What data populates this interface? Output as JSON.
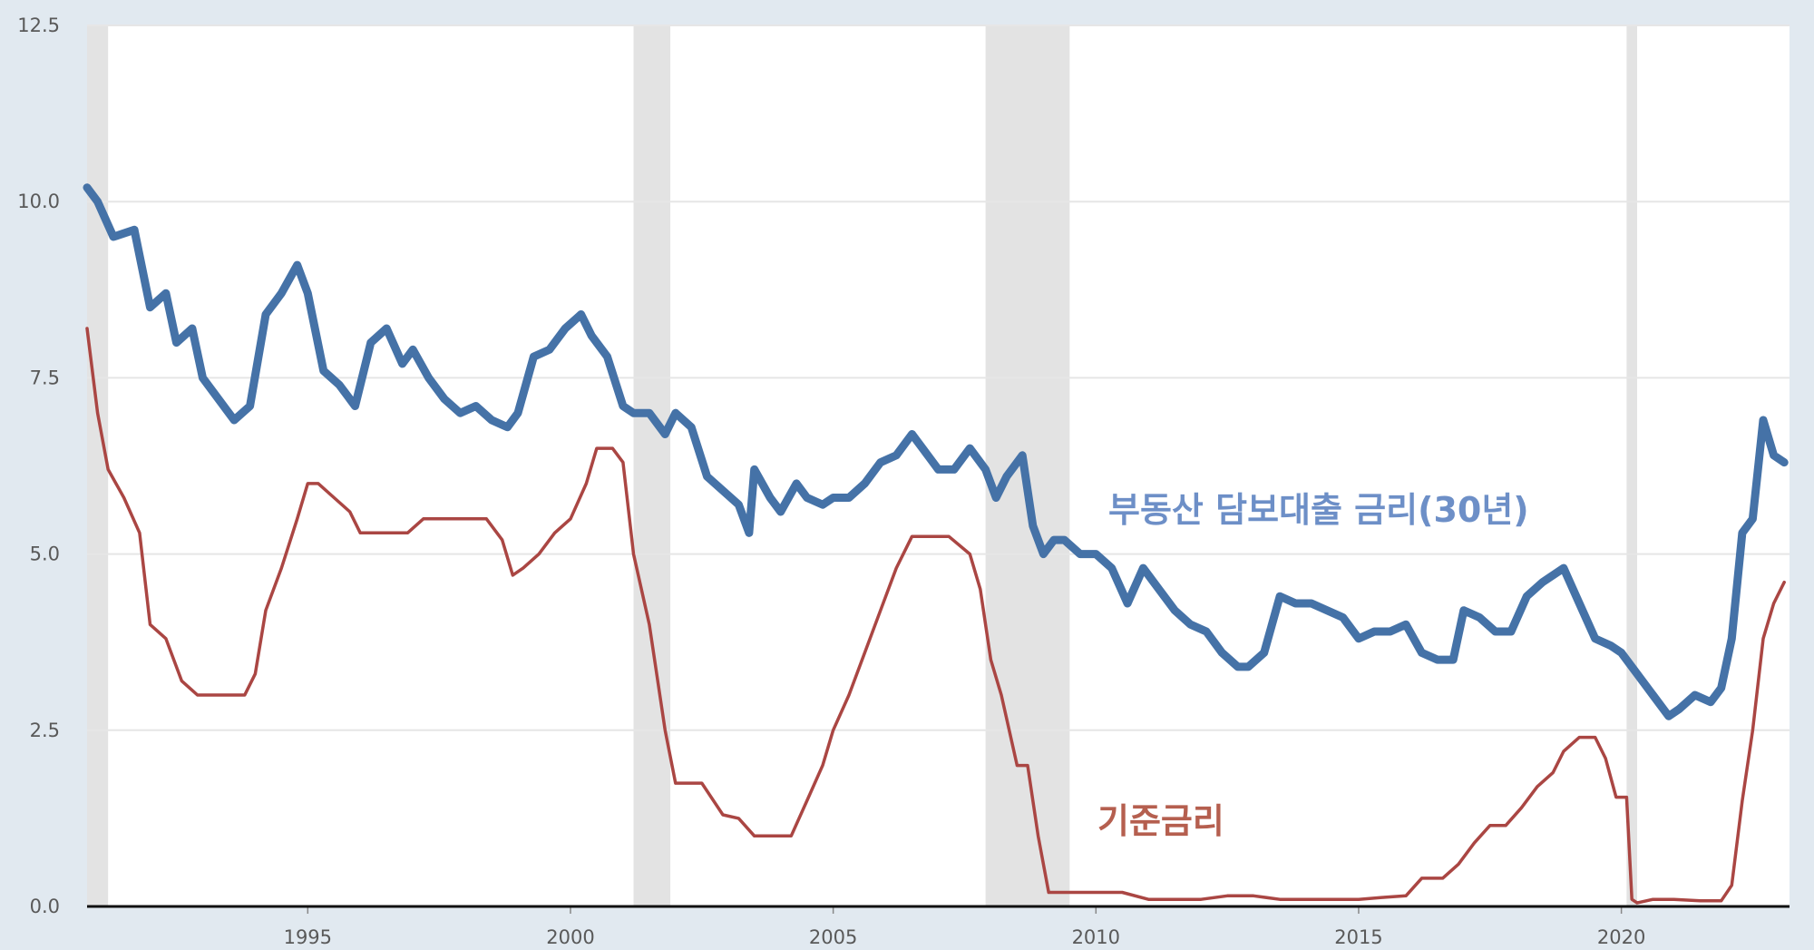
{
  "chart_data": {
    "type": "line",
    "title": "",
    "xlabel": "",
    "ylabel": "",
    "xlim": [
      1990.8,
      2023.2
    ],
    "ylim": [
      0,
      12.5
    ],
    "grid": true,
    "y_ticks": [
      "0.0",
      "2.5",
      "5.0",
      "7.5",
      "10.0",
      "12.5"
    ],
    "x_ticks": [
      "1995",
      "2000",
      "2005",
      "2010",
      "2015",
      "2020"
    ],
    "recessions": [
      [
        1990.8,
        1991.2
      ],
      [
        2001.2,
        2001.9
      ],
      [
        2007.9,
        2009.5
      ],
      [
        2020.1,
        2020.3
      ]
    ],
    "colors": {
      "background": "#e1e9f0",
      "plot": "#ffffff",
      "grid": "#e6e6e6",
      "recession": "#e3e3e3",
      "mortgage": "#4572a7",
      "fed": "#aa4643",
      "mortgage_label": "#6d8fc7",
      "fed_label": "#b55f4f"
    },
    "series": [
      {
        "key": "mortgage",
        "label": "부동산 담보대출 금리(30년)",
        "x": [
          1990.8,
          1991.0,
          1991.3,
          1991.7,
          1992.0,
          1992.3,
          1992.5,
          1992.8,
          1993.0,
          1993.3,
          1993.6,
          1993.9,
          1994.2,
          1994.5,
          1994.8,
          1995.0,
          1995.3,
          1995.6,
          1995.9,
          1996.2,
          1996.5,
          1996.8,
          1997.0,
          1997.3,
          1997.6,
          1997.9,
          1998.2,
          1998.5,
          1998.8,
          1999.0,
          1999.3,
          1999.6,
          1999.9,
          2000.2,
          2000.4,
          2000.7,
          2001.0,
          2001.2,
          2001.5,
          2001.8,
          2002.0,
          2002.3,
          2002.6,
          2002.9,
          2003.2,
          2003.4,
          2003.5,
          2003.8,
          2004.0,
          2004.3,
          2004.5,
          2004.8,
          2005.0,
          2005.3,
          2005.6,
          2005.9,
          2006.2,
          2006.5,
          2006.8,
          2007.0,
          2007.3,
          2007.6,
          2007.9,
          2008.1,
          2008.3,
          2008.6,
          2008.8,
          2009.0,
          2009.2,
          2009.4,
          2009.7,
          2010.0,
          2010.3,
          2010.6,
          2010.9,
          2011.2,
          2011.5,
          2011.8,
          2012.1,
          2012.4,
          2012.7,
          2012.9,
          2013.2,
          2013.5,
          2013.8,
          2014.1,
          2014.4,
          2014.7,
          2015.0,
          2015.3,
          2015.6,
          2015.9,
          2016.2,
          2016.5,
          2016.8,
          2017.0,
          2017.3,
          2017.6,
          2017.9,
          2018.2,
          2018.5,
          2018.9,
          2019.2,
          2019.5,
          2019.8,
          2020.0,
          2020.3,
          2020.6,
          2020.9,
          2021.1,
          2021.4,
          2021.7,
          2021.9,
          2022.1,
          2022.3,
          2022.5,
          2022.7,
          2022.9,
          2023.1
        ],
        "y": [
          10.2,
          10.0,
          9.5,
          9.6,
          8.5,
          8.7,
          8.0,
          8.2,
          7.5,
          7.2,
          6.9,
          7.1,
          8.4,
          8.7,
          9.1,
          8.7,
          7.6,
          7.4,
          7.1,
          8.0,
          8.2,
          7.7,
          7.9,
          7.5,
          7.2,
          7.0,
          7.1,
          6.9,
          6.8,
          7.0,
          7.8,
          7.9,
          8.2,
          8.4,
          8.1,
          7.8,
          7.1,
          7.0,
          7.0,
          6.7,
          7.0,
          6.8,
          6.1,
          5.9,
          5.7,
          5.3,
          6.2,
          5.8,
          5.6,
          6.0,
          5.8,
          5.7,
          5.8,
          5.8,
          6.0,
          6.3,
          6.4,
          6.7,
          6.4,
          6.2,
          6.2,
          6.5,
          6.2,
          5.8,
          6.1,
          6.4,
          5.4,
          5.0,
          5.2,
          5.2,
          5.0,
          5.0,
          4.8,
          4.3,
          4.8,
          4.5,
          4.2,
          4.0,
          3.9,
          3.6,
          3.4,
          3.4,
          3.6,
          4.4,
          4.3,
          4.3,
          4.2,
          4.1,
          3.8,
          3.9,
          3.9,
          4.0,
          3.6,
          3.5,
          3.5,
          4.2,
          4.1,
          3.9,
          3.9,
          4.4,
          4.6,
          4.8,
          4.3,
          3.8,
          3.7,
          3.6,
          3.3,
          3.0,
          2.7,
          2.8,
          3.0,
          2.9,
          3.1,
          3.8,
          5.3,
          5.5,
          6.9,
          6.4,
          6.3
        ]
      },
      {
        "key": "fed",
        "label": "기준금리",
        "x": [
          1990.8,
          1991.0,
          1991.2,
          1991.5,
          1991.8,
          1992.0,
          1992.3,
          1992.6,
          1992.9,
          1993.2,
          1993.5,
          1993.8,
          1994.0,
          1994.2,
          1994.5,
          1994.8,
          1995.0,
          1995.2,
          1995.5,
          1995.8,
          1996.0,
          1996.3,
          1996.6,
          1996.9,
          1997.2,
          1997.5,
          1997.8,
          1998.1,
          1998.4,
          1998.7,
          1998.9,
          1999.1,
          1999.4,
          1999.7,
          2000.0,
          2000.3,
          2000.5,
          2000.8,
          2001.0,
          2001.2,
          2001.5,
          2001.8,
          2002.0,
          2002.5,
          2002.9,
          2003.2,
          2003.5,
          2003.8,
          2004.2,
          2004.5,
          2004.8,
          2005.0,
          2005.3,
          2005.6,
          2005.9,
          2006.2,
          2006.5,
          2006.8,
          2007.2,
          2007.6,
          2007.8,
          2008.0,
          2008.2,
          2008.5,
          2008.7,
          2008.9,
          2009.1,
          2009.5,
          2010.0,
          2010.5,
          2011.0,
          2011.5,
          2012.0,
          2012.5,
          2013.0,
          2013.5,
          2014.0,
          2014.5,
          2015.0,
          2015.5,
          2015.9,
          2016.2,
          2016.6,
          2016.9,
          2017.2,
          2017.5,
          2017.8,
          2018.1,
          2018.4,
          2018.7,
          2018.9,
          2019.2,
          2019.5,
          2019.7,
          2019.9,
          2020.1,
          2020.2,
          2020.3,
          2020.6,
          2021.0,
          2021.5,
          2021.9,
          2022.1,
          2022.3,
          2022.5,
          2022.7,
          2022.9,
          2023.1
        ],
        "y": [
          8.2,
          7.0,
          6.2,
          5.8,
          5.3,
          4.0,
          3.8,
          3.2,
          3.0,
          3.0,
          3.0,
          3.0,
          3.3,
          4.2,
          4.8,
          5.5,
          6.0,
          6.0,
          5.8,
          5.6,
          5.3,
          5.3,
          5.3,
          5.3,
          5.5,
          5.5,
          5.5,
          5.5,
          5.5,
          5.2,
          4.7,
          4.8,
          5.0,
          5.3,
          5.5,
          6.0,
          6.5,
          6.5,
          6.3,
          5.0,
          4.0,
          2.5,
          1.75,
          1.75,
          1.3,
          1.25,
          1.0,
          1.0,
          1.0,
          1.5,
          2.0,
          2.5,
          3.0,
          3.6,
          4.2,
          4.8,
          5.25,
          5.25,
          5.25,
          5.0,
          4.5,
          3.5,
          3.0,
          2.0,
          2.0,
          1.0,
          0.2,
          0.2,
          0.2,
          0.2,
          0.1,
          0.1,
          0.1,
          0.15,
          0.15,
          0.1,
          0.1,
          0.1,
          0.1,
          0.13,
          0.15,
          0.4,
          0.4,
          0.6,
          0.9,
          1.15,
          1.15,
          1.4,
          1.7,
          1.9,
          2.2,
          2.4,
          2.4,
          2.1,
          1.55,
          1.55,
          0.1,
          0.05,
          0.1,
          0.1,
          0.08,
          0.08,
          0.3,
          1.5,
          2.5,
          3.8,
          4.3,
          4.6
        ]
      }
    ],
    "annotations": [
      {
        "text": "부동산 담보대출 금리(30년)",
        "series": "mortgage"
      },
      {
        "text": "기준금리",
        "series": "fed"
      }
    ]
  }
}
